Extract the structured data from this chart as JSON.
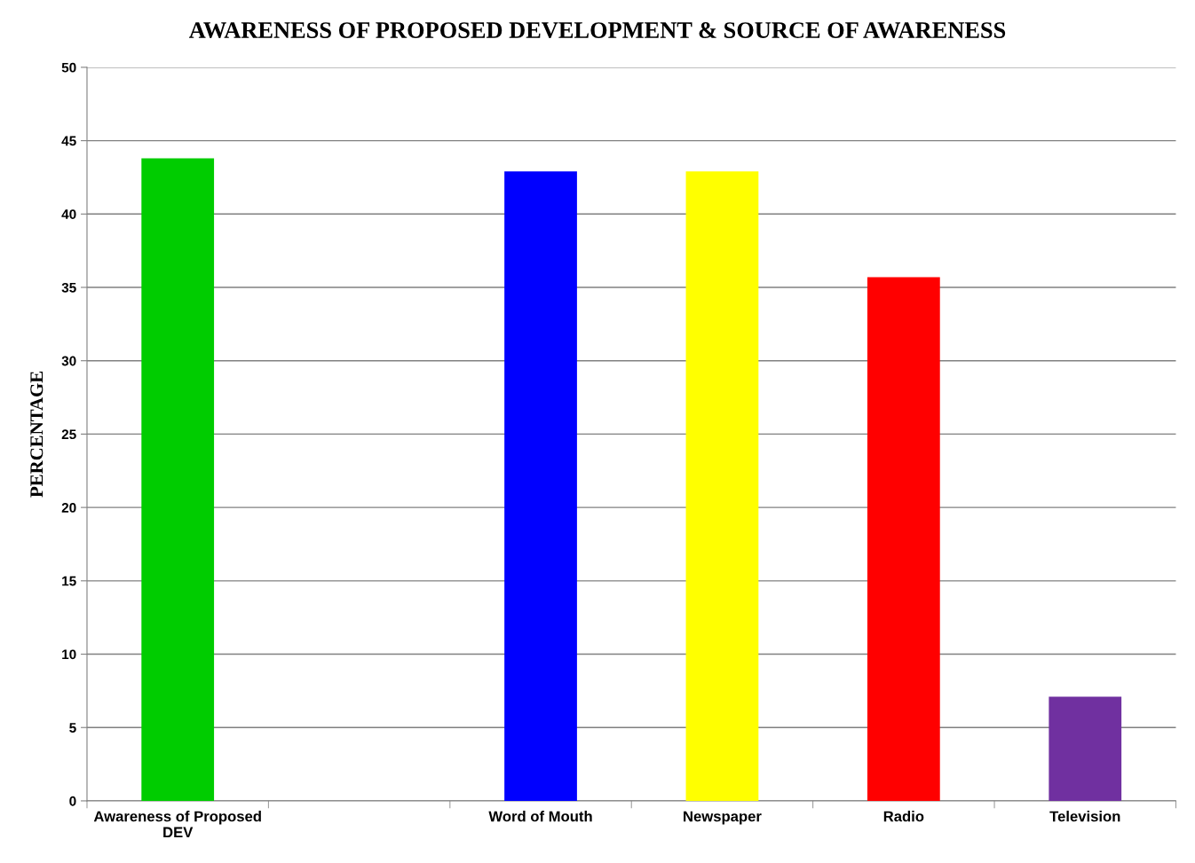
{
  "chart_data": {
    "type": "bar",
    "title": "AWARENESS OF PROPOSED DEVELOPMENT & SOURCE OF AWARENESS",
    "ylabel": "PERCENTAGE",
    "categories": [
      "Awareness of Proposed DEV",
      null,
      "Word of Mouth",
      "Newspaper",
      "Radio",
      "Television"
    ],
    "values": [
      43.8,
      null,
      42.9,
      42.9,
      35.7,
      7.1
    ],
    "colors": [
      "#00cc00",
      "#808080",
      "#0000ff",
      "#ffff00",
      "#ff0000",
      "#7030a0"
    ],
    "ylim": [
      0,
      50
    ],
    "yticks": [
      0,
      5,
      10,
      15,
      20,
      25,
      30,
      35,
      40,
      45,
      50
    ],
    "grid": "y",
    "legend": false
  }
}
